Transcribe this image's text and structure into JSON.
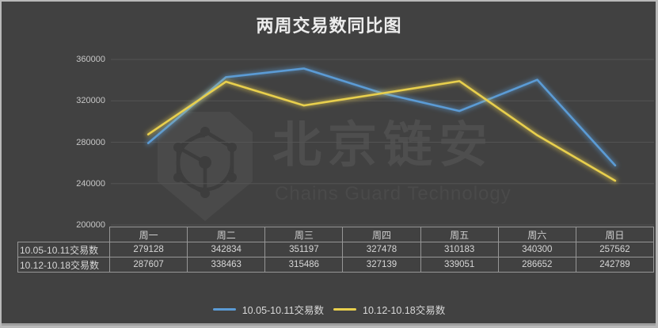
{
  "title": "两周交易数同比图",
  "watermark": {
    "cn": "北京链安",
    "en": "Chains Guard Technology"
  },
  "colors": {
    "background": "#414141",
    "frame_border": "#b9b9b9",
    "gridline": "#545454",
    "axis_text": "#c7c7c7",
    "table_border": "#969696",
    "series_blue": "#5b9bd5",
    "series_yellow": "#e8cf4d"
  },
  "chart_data": {
    "type": "line",
    "title": "两周交易数同比图",
    "categories": [
      "周一",
      "周二",
      "周三",
      "周四",
      "周五",
      "周六",
      "周日"
    ],
    "series": [
      {
        "name": "10.05-10.11交易数",
        "color": "#5b9bd5",
        "values": [
          279128,
          342834,
          351197,
          327478,
          310183,
          340300,
          257562
        ]
      },
      {
        "name": "10.12-10.18交易数",
        "color": "#e8cf4d",
        "values": [
          287607,
          338463,
          315486,
          327139,
          339051,
          286652,
          242789
        ]
      }
    ],
    "ylim": [
      200000,
      360000
    ],
    "yticks": [
      200000,
      240000,
      280000,
      320000,
      360000
    ],
    "grid": true,
    "legend_position": "bottom",
    "data_table": true
  }
}
